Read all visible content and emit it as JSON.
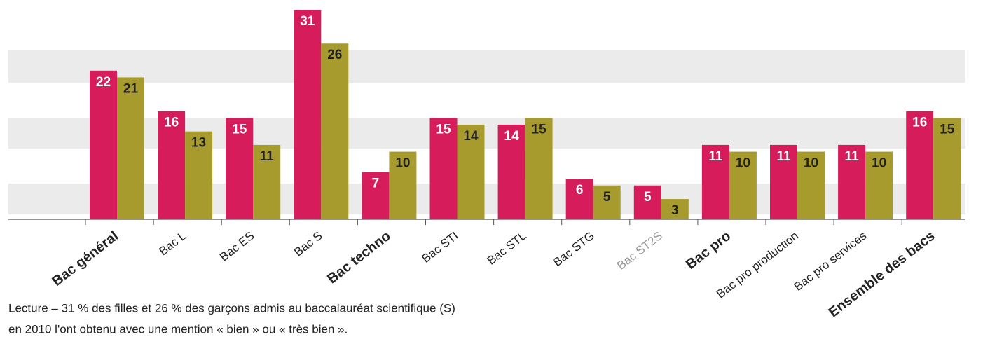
{
  "chart_data": {
    "type": "bar",
    "categories": [
      "Bac général",
      "Bac L",
      "Bac ES",
      "Bac S",
      "Bac techno",
      "Bac STI",
      "Bac STL",
      "Bac STG",
      "Bac ST2S",
      "Bac pro",
      "Bac pro production",
      "Bac pro services",
      "Ensemble des bacs"
    ],
    "series": [
      {
        "color": "#d61c5b",
        "values": [
          22,
          16,
          15,
          31,
          7,
          15,
          14,
          6,
          5,
          11,
          11,
          11,
          16
        ]
      },
      {
        "color": "#a89b2e",
        "values": [
          21,
          13,
          11,
          26,
          10,
          14,
          15,
          5,
          3,
          10,
          10,
          10,
          15
        ]
      }
    ],
    "ylim": [
      0,
      31
    ],
    "annotations": [
      "Lecture – 31 % des filles et 26 % des garçons admis au baccalauréat scientifique (S)",
      "en 2010 l'ont obtenu avec une mention « bien » ou « très bien »."
    ]
  }
}
